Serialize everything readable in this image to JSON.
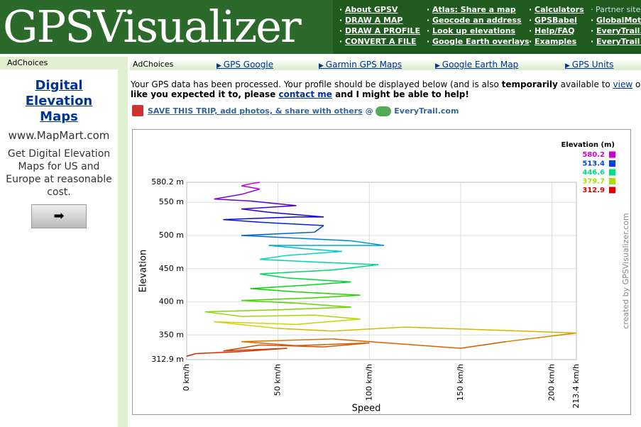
{
  "header": {
    "logo": "GPSVisualizer",
    "nav": [
      [
        "About GPSV",
        "DRAW A MAP",
        "DRAW A PROFILE",
        "CONVERT A FILE"
      ],
      [
        "Atlas: Share a map",
        "Geocode an address",
        "Look up elevations",
        "Google Earth overlays"
      ],
      [
        "Calculators",
        "GPSBabel",
        "Help/FAQ",
        "Examples"
      ]
    ],
    "partners_label": "Partner sites",
    "partners": [
      "GlobalMotion",
      "EveryTrail.c",
      "EveryTrail G"
    ]
  },
  "sidebar": {
    "adchoices": "AdChoices",
    "ad_title": "Digital Elevation Maps",
    "url": "www.MapMart.com",
    "text": "Get Digital Elevation Maps for US and Europe at reasonable cost."
  },
  "adbar": {
    "adchoices": "AdChoices",
    "links": [
      "GPS Google",
      "Garmin GPS Maps",
      "Google Earth Map",
      "GPS Units"
    ]
  },
  "message": {
    "line1": [
      "Your GPS data has been processed. Your profile should be displayed below (and is also ",
      "temporarily",
      " available to ",
      "view",
      " or dow"
    ],
    "line2": [
      "like you expected it to, please ",
      "contact me",
      " and I might be able to help!"
    ]
  },
  "save": {
    "text": "SAVE THIS TRIP, add photos, & share with others",
    "at": "@",
    "brand": "EveryTrail.com"
  },
  "chart_data": {
    "type": "line",
    "x_label": "Speed",
    "y_label": "Elevation",
    "xlim": [
      0,
      213.4
    ],
    "ylim": [
      312.9,
      580.2
    ],
    "xticks": [
      {
        "value": 0,
        "label": "0 km/h"
      },
      {
        "value": 50,
        "label": "50 km/h"
      },
      {
        "value": 100,
        "label": "100 km/h"
      },
      {
        "value": 150,
        "label": "150 km/h"
      },
      {
        "value": 200,
        "label": "200 km/h"
      },
      {
        "value": 213.4,
        "label": "213.4 km/h"
      }
    ],
    "yticks": [
      {
        "value": 312.9,
        "label": "312.9 m"
      },
      {
        "value": 350,
        "label": "350 m"
      },
      {
        "value": 400,
        "label": "400 m"
      },
      {
        "value": 450,
        "label": "450 m"
      },
      {
        "value": 500,
        "label": "500 m"
      },
      {
        "value": 550,
        "label": "550 m"
      },
      {
        "value": 580.2,
        "label": "580.2 m"
      }
    ],
    "grid": true,
    "legend": {
      "title": "Elevation (m)",
      "values": [
        580.2,
        513.4,
        446.6,
        379.7,
        312.9
      ],
      "colors": [
        "#cc00cc",
        "#0044dd",
        "#00dd88",
        "#aadd00",
        "#dd0000"
      ]
    },
    "credit": "created by GPSVisualizer.com",
    "x": [
      0,
      5,
      30,
      55,
      20,
      40,
      75,
      100,
      60,
      30,
      80,
      150,
      175,
      213.4,
      120,
      80,
      50,
      15,
      60,
      95,
      70,
      30,
      10,
      50,
      90,
      60,
      30,
      70,
      95,
      60,
      35,
      65,
      90,
      55,
      40,
      80,
      105,
      70,
      40,
      55,
      85,
      65,
      45,
      108,
      90,
      60,
      30,
      70,
      75,
      40,
      20,
      60,
      75,
      45,
      30,
      60,
      35,
      15,
      30,
      40,
      30,
      35,
      40
    ],
    "values": [
      318,
      322,
      325,
      330,
      326,
      335,
      332,
      338,
      334,
      340,
      344,
      330,
      340,
      353,
      362,
      356,
      360,
      370,
      366,
      374,
      380,
      378,
      385,
      388,
      392,
      398,
      402,
      406,
      410,
      415,
      420,
      425,
      430,
      436,
      442,
      448,
      456,
      460,
      464,
      470,
      476,
      480,
      485,
      485,
      492,
      496,
      500,
      505,
      515,
      520,
      524,
      528,
      528,
      535,
      540,
      545,
      552,
      555,
      562,
      570,
      575,
      578,
      580.2
    ]
  }
}
